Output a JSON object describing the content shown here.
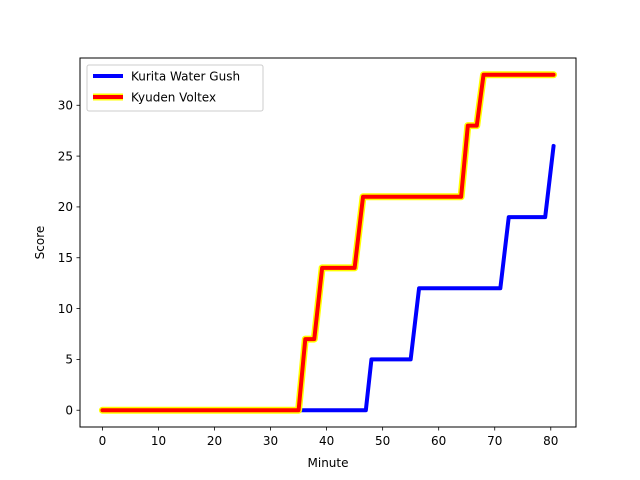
{
  "chart_data": {
    "type": "line",
    "title": "",
    "xlabel": "Minute",
    "ylabel": "Score",
    "xlim": [
      -4,
      84.5
    ],
    "ylim": [
      -1.65,
      34.65
    ],
    "xticks": [
      0,
      10,
      20,
      30,
      40,
      50,
      60,
      70,
      80
    ],
    "yticks": [
      0,
      5,
      10,
      15,
      20,
      25,
      30
    ],
    "grid": false,
    "legend_position": "top-left",
    "series": [
      {
        "name": "Kurita Water Gush",
        "color": "#0000ff",
        "points": [
          [
            0,
            0
          ],
          [
            47,
            0
          ],
          [
            48,
            5
          ],
          [
            55,
            5
          ],
          [
            56.5,
            12
          ],
          [
            71,
            12
          ],
          [
            72.5,
            19
          ],
          [
            79,
            19
          ],
          [
            80.5,
            26
          ]
        ]
      },
      {
        "name": "Kyuden Voltex",
        "color": "#ff0000",
        "outline_color": "#ffff00",
        "points": [
          [
            0,
            0
          ],
          [
            35,
            0
          ],
          [
            36.2,
            7
          ],
          [
            37.8,
            7
          ],
          [
            39.2,
            14
          ],
          [
            45,
            14
          ],
          [
            46.5,
            21
          ],
          [
            64,
            21
          ],
          [
            65.2,
            28
          ],
          [
            66.8,
            28
          ],
          [
            68,
            33
          ],
          [
            80.5,
            33
          ]
        ]
      }
    ]
  }
}
